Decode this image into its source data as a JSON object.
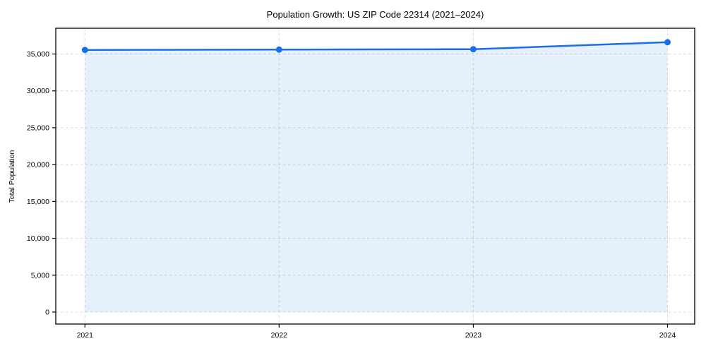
{
  "figure": {
    "title": "Population Growth: US ZIP Code 22314 (2021–2024)",
    "y_axis_label": "Total Population"
  },
  "chart_data": {
    "type": "line",
    "title": "Population Growth: US ZIP Code 22314 (2021–2024)",
    "xlabel": "",
    "ylabel": "Total Population",
    "categories": [
      "2021",
      "2022",
      "2023",
      "2024"
    ],
    "x": [
      2021,
      2022,
      2023,
      2024
    ],
    "series": [
      {
        "name": "Total Population",
        "values": [
          35550,
          35600,
          35650,
          36600
        ]
      }
    ],
    "area_fill": true,
    "area_fill_to": 0,
    "marker": "circle",
    "grid": true,
    "grid_style": "dashed",
    "legend": false,
    "xtick_labels": [
      "2021",
      "2022",
      "2023",
      "2024"
    ],
    "yticks": [
      0,
      5000,
      10000,
      15000,
      20000,
      25000,
      30000,
      35000
    ],
    "ytick_labels": [
      "0",
      "5,000",
      "10,000",
      "15,000",
      "20,000",
      "25,000",
      "30,000",
      "35,000"
    ],
    "xlim": [
      2020.85,
      2024.14
    ],
    "ylim": [
      -1628,
      38495
    ],
    "style": {
      "line_color": "#1a6fe8",
      "marker_color": "#1a6fe8",
      "fill_color": "#1a6fe8",
      "fill_opacity": 0.11,
      "grid_color": "#d9d9d9",
      "axis_color": "#000000",
      "text_color": "#000000",
      "background": "#ffffff"
    }
  }
}
